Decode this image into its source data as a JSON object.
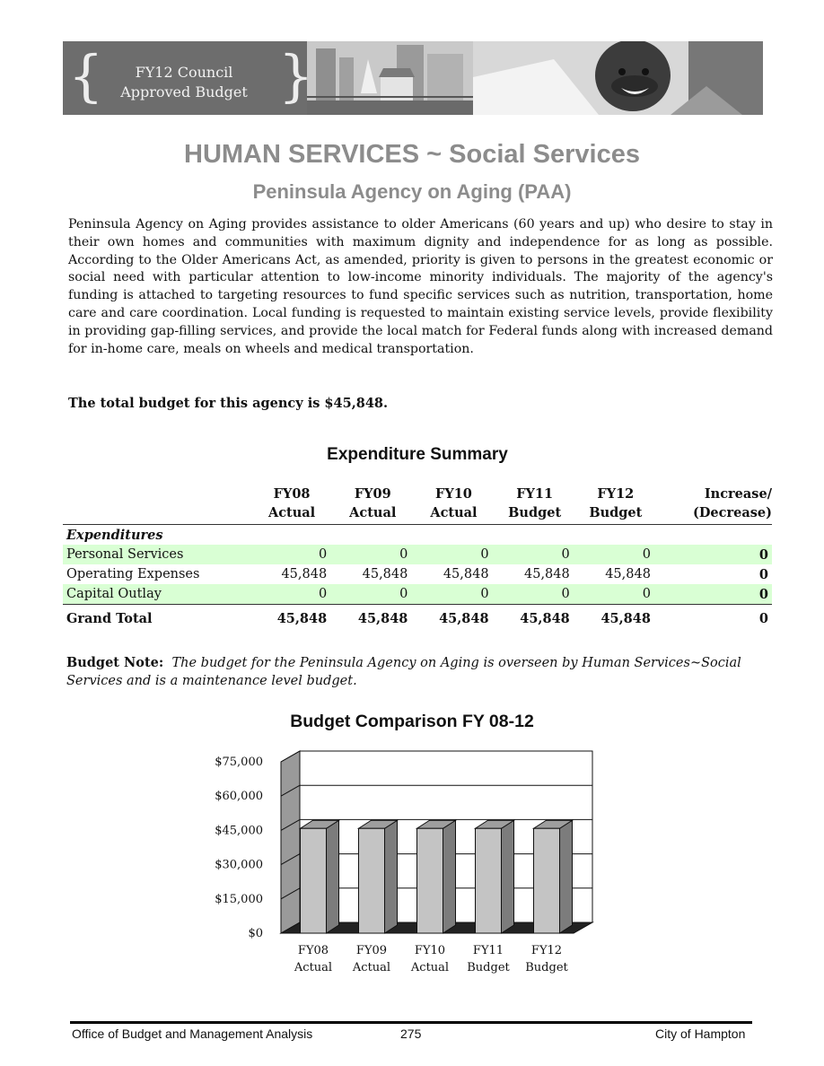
{
  "banner": {
    "title_line1": "FY12 Council",
    "title_line2": "Approved Budget",
    "brace_left": "{",
    "brace_right": "}"
  },
  "heading": "HUMAN SERVICES ~ Social Services",
  "subheading": "Peninsula Agency on Aging (PAA)",
  "intro": "Peninsula Agency on Aging provides assistance to older Americans (60 years and up) who desire to stay in their own homes and communities with maximum dignity and independence for as long as possible.  According to the Older Americans Act, as amended, priority is given to persons in the greatest economic or social need with particular attention to low-income minority individuals.  The majority of the agency's funding is attached to targeting resources to fund specific services such as nutrition, transportation, home care and care coordination.  Local funding is requested to maintain existing service levels, provide flexibility in providing gap-filling services, and provide the local match for Federal funds along with increased demand for in-home care, meals on wheels and medical transportation.",
  "total_budget": "The total budget for this agency is $45,848.",
  "expenditure": {
    "title": "Expenditure Summary",
    "columns": [
      {
        "l1": "FY08",
        "l2": "Actual"
      },
      {
        "l1": "FY09",
        "l2": "Actual"
      },
      {
        "l1": "FY10",
        "l2": "Actual"
      },
      {
        "l1": "FY11",
        "l2": "Budget"
      },
      {
        "l1": "FY12",
        "l2": "Budget"
      },
      {
        "l1": "Increase/",
        "l2": "(Decrease)"
      }
    ],
    "section_label": "Expenditures",
    "rows": [
      {
        "label": "Personal Services",
        "values": [
          "0",
          "0",
          "0",
          "0",
          "0",
          "0"
        ]
      },
      {
        "label": "Operating Expenses",
        "values": [
          "45,848",
          "45,848",
          "45,848",
          "45,848",
          "45,848",
          "0"
        ]
      },
      {
        "label": "Capital Outlay",
        "values": [
          "0",
          "0",
          "0",
          "0",
          "0",
          "0"
        ]
      }
    ],
    "grand_total": {
      "label": "Grand Total",
      "values": [
        "45,848",
        "45,848",
        "45,848",
        "45,848",
        "45,848",
        "0"
      ]
    }
  },
  "budget_note": {
    "label": "Budget Note",
    "colon": ":",
    "text": "The budget for the Peninsula Agency on Aging is overseen by Human Services~Social Services and is a maintenance level budget."
  },
  "chart_data": {
    "type": "bar",
    "title": "Budget Comparison FY 08-12",
    "categories": [
      [
        "FY08",
        "Actual"
      ],
      [
        "FY09",
        "Actual"
      ],
      [
        "FY10",
        "Actual"
      ],
      [
        "FY11",
        "Budget"
      ],
      [
        "FY12",
        "Budget"
      ]
    ],
    "values": [
      45848,
      45848,
      45848,
      45848,
      45848
    ],
    "ylim": [
      0,
      75000
    ],
    "yticks": [
      "$0",
      "$15,000",
      "$30,000",
      "$45,000",
      "$60,000",
      "$75,000"
    ],
    "ytick_values": [
      0,
      15000,
      30000,
      45000,
      60000,
      75000
    ],
    "xlabel": "",
    "ylabel": "",
    "grid": true,
    "bar_color": "#c4c4c4",
    "bar_side_color": "#7c7c7c"
  },
  "footer": {
    "left": "Office of Budget and Management Analysis",
    "center": "275",
    "right": "City of Hampton"
  }
}
